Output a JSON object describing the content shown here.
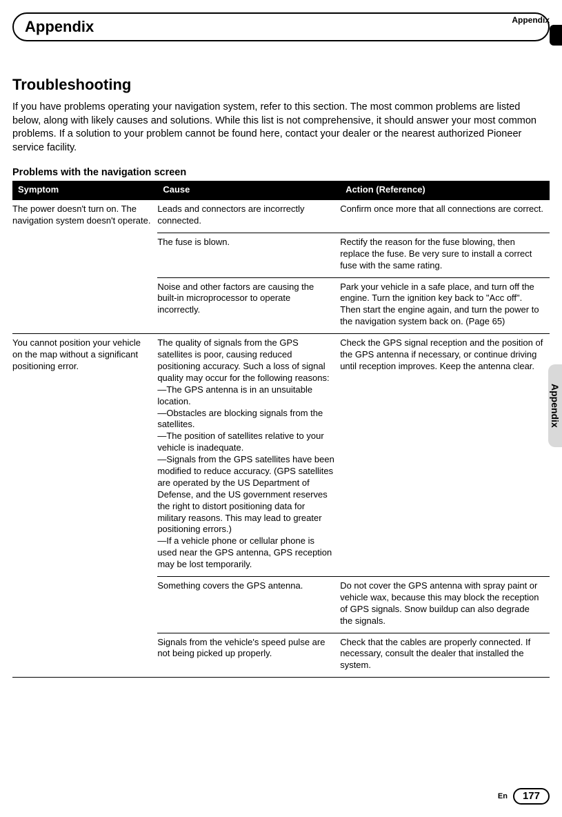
{
  "header": {
    "top_label": "Appendix",
    "bar_title": "Appendix"
  },
  "side_tab": "Appendix",
  "section": {
    "title": "Troubleshooting",
    "intro": "If you have problems operating your navigation system, refer to this section. The most common problems are listed below, along with likely causes and solutions. While this list is not comprehensive, it should answer your most common problems. If a solution to your problem cannot be found here, contact your dealer or the nearest authorized Pioneer service facility."
  },
  "table": {
    "subtitle": "Problems with the navigation screen",
    "columns": {
      "symptom": "Symptom",
      "cause": "Cause",
      "action": "Action (Reference)"
    },
    "groups": [
      {
        "symptom": "The power doesn't turn on. The navigation system doesn't operate.",
        "rows": [
          {
            "cause": "Leads and connectors are incorrectly connected.",
            "action": "Confirm once more that all connections are correct."
          },
          {
            "cause": "The fuse is blown.",
            "action": "Rectify the reason for the fuse blowing, then replace the fuse. Be very sure to install a correct fuse with the same rating."
          },
          {
            "cause": "Noise and other factors are causing the built-in microprocessor to operate incorrectly.",
            "action": "Park your vehicle in a safe place, and turn off the engine. Turn the ignition key back to \"Acc off\". Then start the engine again, and turn the power to the navigation system back on. (Page 65)"
          }
        ]
      },
      {
        "symptom": "You cannot position your vehicle on the map without a significant positioning error.",
        "rows": [
          {
            "cause": "The quality of signals from the GPS satellites is poor, causing reduced positioning accuracy. Such a loss of signal quality may occur for the following reasons:\n—The GPS antenna is in an unsuitable location.\n—Obstacles are blocking signals from the satellites.\n—The position of satellites relative to your vehicle is inadequate.\n—Signals from the GPS satellites have been modified to reduce accuracy. (GPS satellites are operated by the US Department of Defense, and the US government reserves the right to distort positioning data for military reasons. This may lead to greater positioning errors.)\n—If a vehicle phone or cellular phone is used near the GPS antenna, GPS reception may be lost temporarily.",
            "action": "Check the GPS signal reception and the position of the GPS antenna if necessary, or continue driving until reception improves. Keep the antenna clear."
          },
          {
            "cause": "Something covers the GPS antenna.",
            "action": "Do not cover the GPS antenna with spray paint or vehicle wax, because this may block the reception of GPS signals. Snow buildup can also degrade the signals."
          },
          {
            "cause": "Signals from the vehicle's speed pulse are not being picked up properly.",
            "action": "Check that the cables are properly connected. If necessary, consult the dealer that installed the system."
          }
        ]
      }
    ]
  },
  "footer": {
    "lang": "En",
    "page": "177"
  },
  "colors": {
    "header_bg": "#000000",
    "header_fg": "#ffffff",
    "side_bg": "#d9d9d9",
    "border": "#000000"
  }
}
